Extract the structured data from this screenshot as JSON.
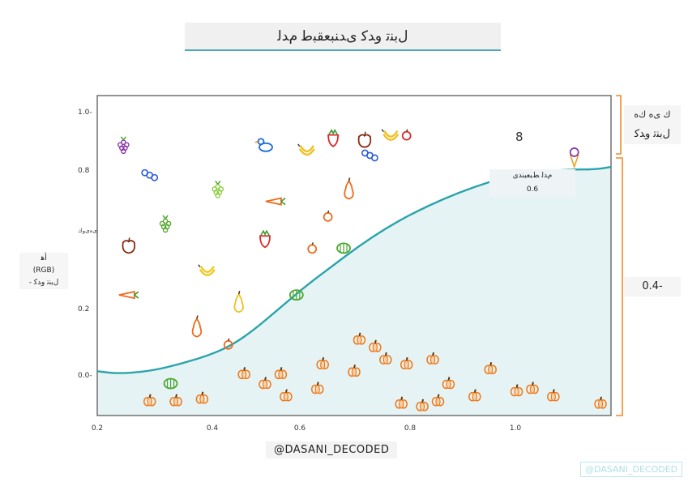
{
  "title": "ﻝﺑﻨﺗ ﻭﺪﻛ ﻯﺪﻨﺒﻌﻘﺒﻃ ﻡﺪﻟ",
  "y_axis_label": [
    "ﺃﻫ",
    "(RGB)",
    "- ﻝﺑﻨﺗ ﻭﺪﻛ"
  ],
  "right_top_label": [
    "ﻙ ﻯﻩ ﻙﻩ",
    "ﻝﺑﻨﺗ ﻭﺪﻛ"
  ],
  "right_bottom_value": "0.4-",
  "curve_label": [
    "ﻡﺪﻟ ﻂﺒﻌﺒﻨﺪﻯ",
    "0.6"
  ],
  "digit_mark": "8",
  "credit": "@DASANI_DECODED",
  "watermark": "@DASANI_DECODED",
  "chart_data": {
    "type": "scatter",
    "x_ticks": [
      "0.2",
      "0.4",
      "0.6",
      "0.8",
      "1.0"
    ],
    "y_ticks": [
      "1.0-",
      "0.8",
      "ﻯﻩﻯﻭﻙ",
      "0.2",
      "0.0-"
    ],
    "xlim": [
      0.2,
      1.18
    ],
    "ylim": [
      -0.18,
      1.12
    ],
    "curve": {
      "x": [
        0.2,
        0.24,
        0.3,
        0.36,
        0.42,
        0.46,
        0.5,
        0.55,
        0.6,
        0.65,
        0.7,
        0.75,
        0.8,
        0.86,
        0.92,
        0.98,
        1.04,
        1.1,
        1.15,
        1.18
      ],
      "y": [
        0.0,
        -0.01,
        0.0,
        0.03,
        0.07,
        0.11,
        0.17,
        0.26,
        0.35,
        0.43,
        0.51,
        0.58,
        0.64,
        0.7,
        0.75,
        0.79,
        0.81,
        0.82,
        0.82,
        0.83
      ]
    },
    "points": [
      {
        "kind": "grapes",
        "color": "#8a3aa8",
        "x": 0.25,
        "y": 0.92
      },
      {
        "kind": "blueberry",
        "color": "#2a5ad8",
        "x": 0.3,
        "y": 0.8
      },
      {
        "kind": "grapes",
        "color": "#5aa830",
        "x": 0.33,
        "y": 0.6
      },
      {
        "kind": "lettuce",
        "color": "#8b2a10",
        "x": 0.26,
        "y": 0.51
      },
      {
        "kind": "carrot",
        "color": "#f06a1a",
        "x": 0.26,
        "y": 0.31
      },
      {
        "kind": "grapes",
        "color": "#8acc3a",
        "x": 0.43,
        "y": 0.74
      },
      {
        "kind": "banana",
        "color": "#f0c820",
        "x": 0.41,
        "y": 0.4
      },
      {
        "kind": "pear",
        "color": "#f0c020",
        "x": 0.47,
        "y": 0.28
      },
      {
        "kind": "pear",
        "color": "#f06a1a",
        "x": 0.39,
        "y": 0.18
      },
      {
        "kind": "duck",
        "color": "#1a6ad8",
        "x": 0.52,
        "y": 0.92
      },
      {
        "kind": "strawberry",
        "color": "#d82a2a",
        "x": 0.52,
        "y": 0.54
      },
      {
        "kind": "carrot",
        "color": "#f06a1a",
        "x": 0.54,
        "y": 0.69
      },
      {
        "kind": "banana",
        "color": "#f0c020",
        "x": 0.6,
        "y": 0.89
      },
      {
        "kind": "strawberry",
        "color": "#d82a2a",
        "x": 0.65,
        "y": 0.95
      },
      {
        "kind": "apple",
        "color": "#8b2a10",
        "x": 0.71,
        "y": 0.94
      },
      {
        "kind": "blueberry",
        "color": "#2a5ad8",
        "x": 0.72,
        "y": 0.88
      },
      {
        "kind": "banana",
        "color": "#f0c020",
        "x": 0.76,
        "y": 0.95
      },
      {
        "kind": "tomato",
        "color": "#d82a2a",
        "x": 0.79,
        "y": 0.96
      },
      {
        "kind": "pear",
        "color": "#f06a1a",
        "x": 0.68,
        "y": 0.74
      },
      {
        "kind": "orange",
        "color": "#f06a1a",
        "x": 0.64,
        "y": 0.63
      },
      {
        "kind": "orange",
        "color": "#f06a1a",
        "x": 0.61,
        "y": 0.5
      },
      {
        "kind": "lime",
        "color": "#4aa830",
        "x": 0.67,
        "y": 0.5
      },
      {
        "kind": "lime",
        "color": "#4aa830",
        "x": 0.58,
        "y": 0.31
      },
      {
        "kind": "orange",
        "color": "#f06a1a",
        "x": 0.45,
        "y": 0.11
      },
      {
        "kind": "icecream",
        "color": "#8a3aa8",
        "x": 1.11,
        "y": 0.87
      },
      {
        "kind": "pumpkin",
        "color": "#f07a1a",
        "x": 0.63,
        "y": 0.03
      },
      {
        "kind": "pumpkin",
        "color": "#f07a1a",
        "x": 0.55,
        "y": -0.01
      },
      {
        "kind": "pumpkin",
        "color": "#f07a1a",
        "x": 0.62,
        "y": -0.07
      },
      {
        "kind": "pumpkin",
        "color": "#f07a1a",
        "x": 0.48,
        "y": -0.01
      },
      {
        "kind": "pumpkin",
        "color": "#f07a1a",
        "x": 0.52,
        "y": -0.05
      },
      {
        "kind": "pumpkin",
        "color": "#f07a1a",
        "x": 0.56,
        "y": -0.1
      },
      {
        "kind": "pumpkin",
        "color": "#f07a1a",
        "x": 0.7,
        "y": 0.13
      },
      {
        "kind": "pumpkin",
        "color": "#f07a1a",
        "x": 0.73,
        "y": 0.1
      },
      {
        "kind": "pumpkin",
        "color": "#f07a1a",
        "x": 0.69,
        "y": 0.0
      },
      {
        "kind": "pumpkin",
        "color": "#f07a1a",
        "x": 0.75,
        "y": 0.05
      },
      {
        "kind": "pumpkin",
        "color": "#f07a1a",
        "x": 0.79,
        "y": 0.03
      },
      {
        "kind": "pumpkin",
        "color": "#f07a1a",
        "x": 0.84,
        "y": 0.05
      },
      {
        "kind": "pumpkin",
        "color": "#f07a1a",
        "x": 0.87,
        "y": -0.05
      },
      {
        "kind": "pumpkin",
        "color": "#f07a1a",
        "x": 0.92,
        "y": -0.1
      },
      {
        "kind": "pumpkin",
        "color": "#f07a1a",
        "x": 0.85,
        "y": -0.12
      },
      {
        "kind": "pumpkin",
        "color": "#f07a1a",
        "x": 0.78,
        "y": -0.13
      },
      {
        "kind": "pumpkin",
        "color": "#f07a1a",
        "x": 0.82,
        "y": -0.14
      },
      {
        "kind": "pumpkin",
        "color": "#f07a1a",
        "x": 0.95,
        "y": 0.01
      },
      {
        "kind": "pumpkin",
        "color": "#f07a1a",
        "x": 1.0,
        "y": -0.08
      },
      {
        "kind": "pumpkin",
        "color": "#f07a1a",
        "x": 1.03,
        "y": -0.07
      },
      {
        "kind": "pumpkin",
        "color": "#f07a1a",
        "x": 1.07,
        "y": -0.1
      },
      {
        "kind": "pumpkin",
        "color": "#f07a1a",
        "x": 1.16,
        "y": -0.13
      },
      {
        "kind": "pumpkin",
        "color": "#f07a1a",
        "x": 0.3,
        "y": -0.12
      },
      {
        "kind": "pumpkin",
        "color": "#f07a1a",
        "x": 0.35,
        "y": -0.12
      },
      {
        "kind": "pumpkin",
        "color": "#f07a1a",
        "x": 0.4,
        "y": -0.11
      },
      {
        "kind": "lime",
        "color": "#4aa830",
        "x": 0.34,
        "y": -0.05
      }
    ],
    "curve_color": "#2aa3aa",
    "fill_color": "#e6f3f4",
    "bracket_color": "#f08a2a"
  }
}
